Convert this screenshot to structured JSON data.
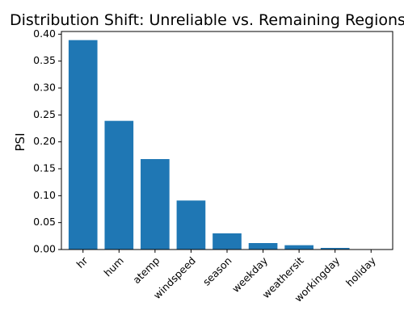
{
  "chart_data": {
    "type": "bar",
    "title": "Distribution Shift: Unreliable vs. Remaining Regions",
    "xlabel": "",
    "ylabel": "PSI",
    "categories": [
      "hr",
      "hum",
      "atemp",
      "windspeed",
      "season",
      "weekday",
      "weathersit",
      "workingday",
      "holiday"
    ],
    "values": [
      0.389,
      0.239,
      0.168,
      0.091,
      0.03,
      0.012,
      0.008,
      0.003,
      0.0003
    ],
    "ylim": [
      0,
      0.405
    ],
    "yticks": [
      0.0,
      0.05,
      0.1,
      0.15,
      0.2,
      0.25,
      0.3,
      0.35,
      0.4
    ],
    "ytick_labels": [
      "0.00",
      "0.05",
      "0.10",
      "0.15",
      "0.20",
      "0.25",
      "0.30",
      "0.35",
      "0.40"
    ],
    "bar_color": "#1f77b4",
    "grid": false,
    "legend": "none"
  }
}
